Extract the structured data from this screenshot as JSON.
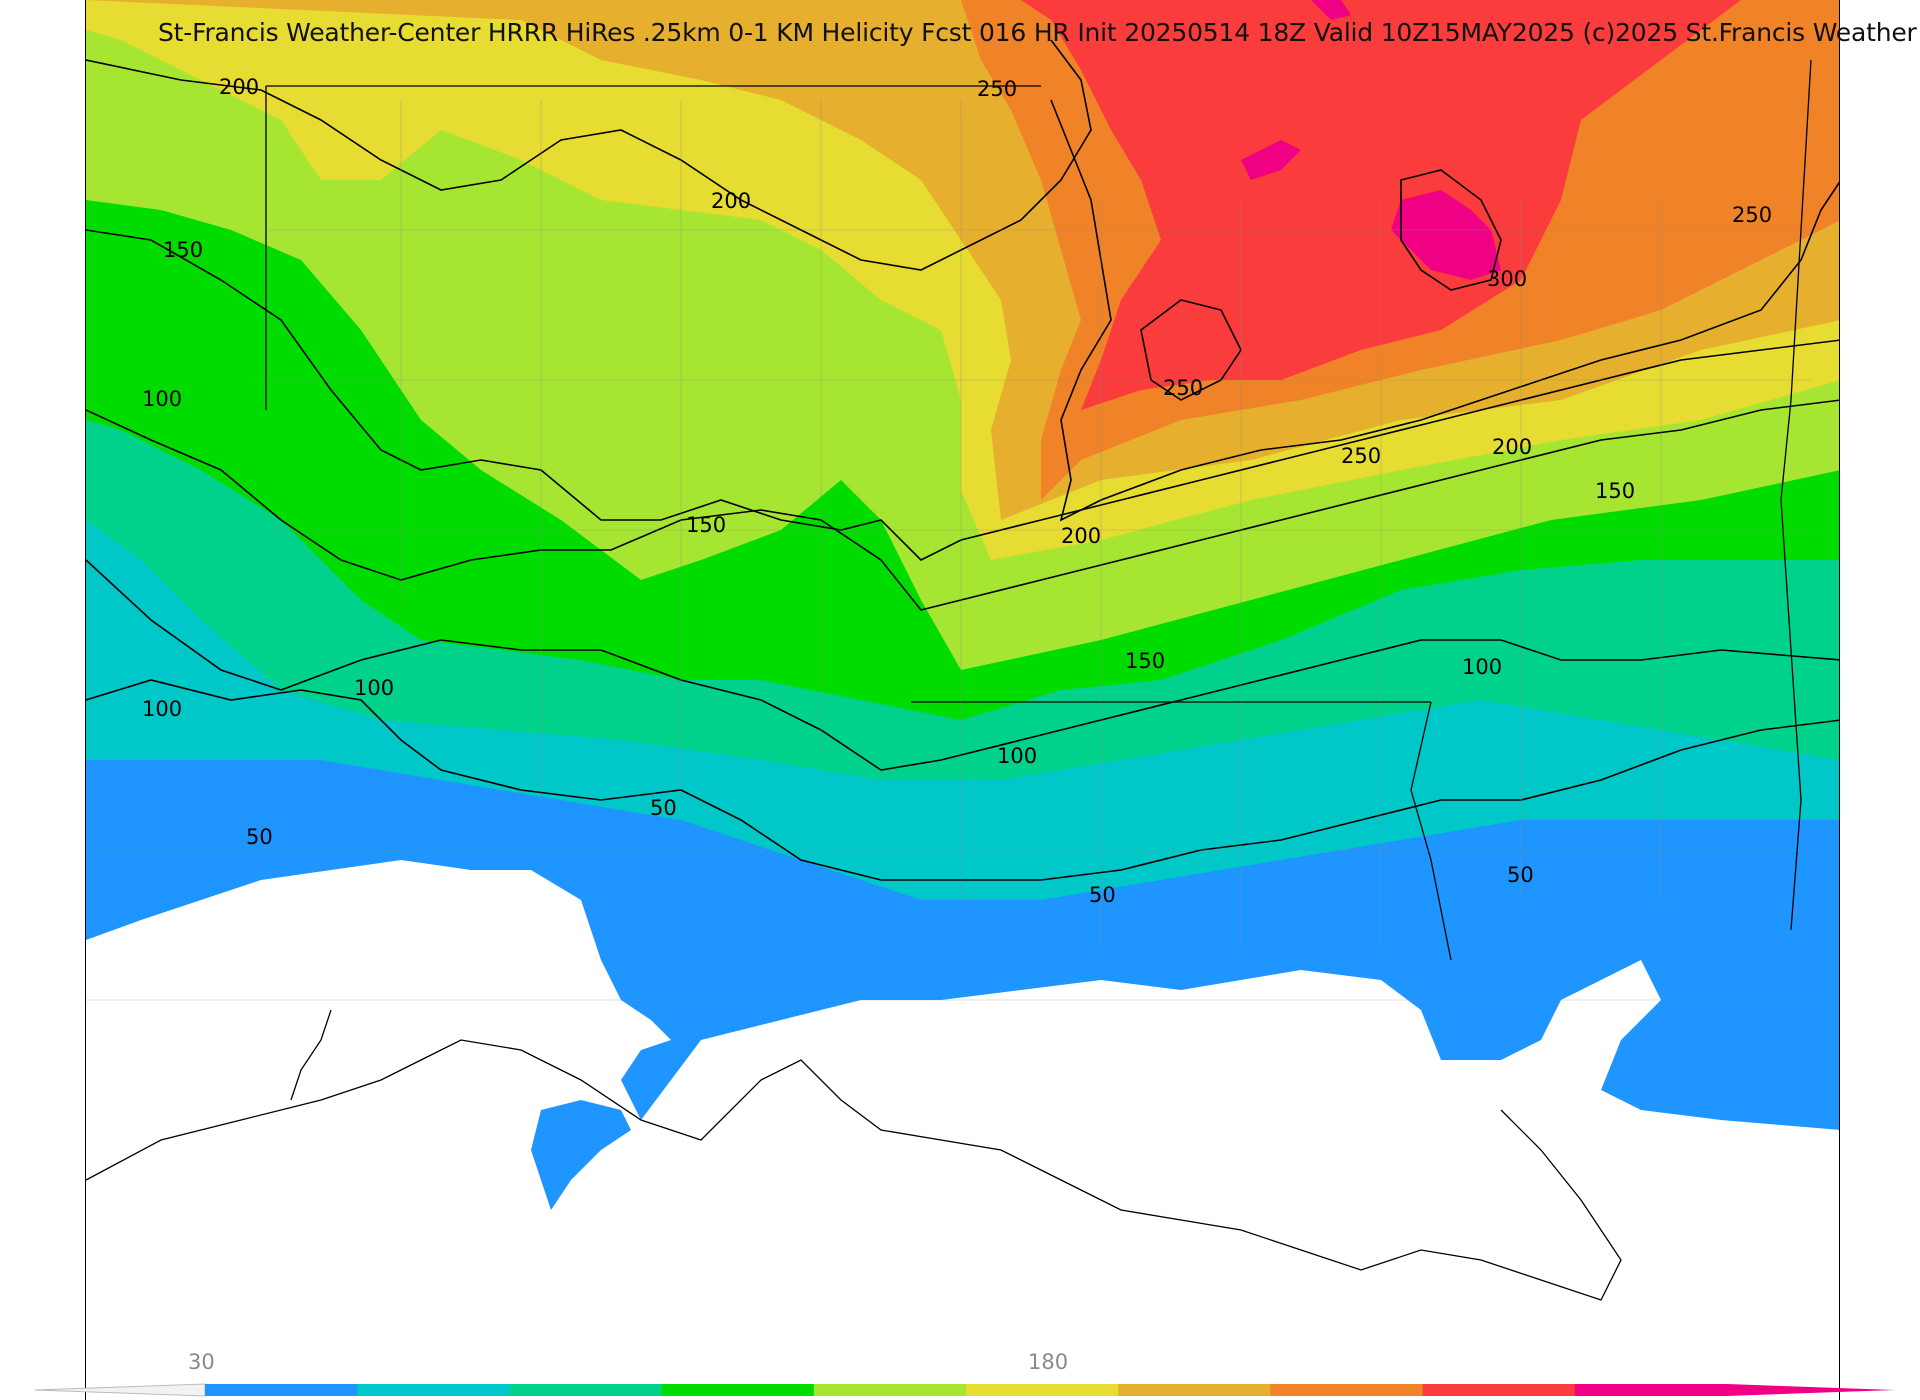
{
  "header": {
    "title": "St-Francis Weather-Center HRRR HiRes .25km 0-1 KM Helicity Fcst 016 HR Init 20250514 18Z  Valid 10Z15MAY2025    (c)2025 St.Francis Weather"
  },
  "colorbar": {
    "tick_labels": [
      "30",
      "180"
    ],
    "colors": [
      "#1f96ff",
      "#00c8c8",
      "#00d28c",
      "#00dc00",
      "#a6e632",
      "#e6dc32",
      "#e6af2d",
      "#f08228",
      "#fa3c3c",
      "#f00082"
    ]
  },
  "contour_labels": [
    {
      "id": "c200-nw",
      "text": "200"
    },
    {
      "id": "c250-n",
      "text": "250"
    },
    {
      "id": "c200-n",
      "text": "200"
    },
    {
      "id": "c150-w",
      "text": "150"
    },
    {
      "id": "c250-ne",
      "text": "250"
    },
    {
      "id": "c300",
      "text": "300"
    },
    {
      "id": "c100-w",
      "text": "100"
    },
    {
      "id": "c250-c",
      "text": "250"
    },
    {
      "id": "c250-e",
      "text": "250"
    },
    {
      "id": "c200-e",
      "text": "200"
    },
    {
      "id": "c150-ne",
      "text": "150"
    },
    {
      "id": "c150-c",
      "text": "150"
    },
    {
      "id": "c200-c",
      "text": "200"
    },
    {
      "id": "c150-se",
      "text": "150"
    },
    {
      "id": "c100-e",
      "text": "100"
    },
    {
      "id": "c100-sw",
      "text": "100"
    },
    {
      "id": "c100-sw2",
      "text": "100"
    },
    {
      "id": "c100-s",
      "text": "100"
    },
    {
      "id": "c50-c",
      "text": "50"
    },
    {
      "id": "c50-w",
      "text": "50"
    },
    {
      "id": "c50-s",
      "text": "50"
    },
    {
      "id": "c50-e",
      "text": "50"
    }
  ]
}
